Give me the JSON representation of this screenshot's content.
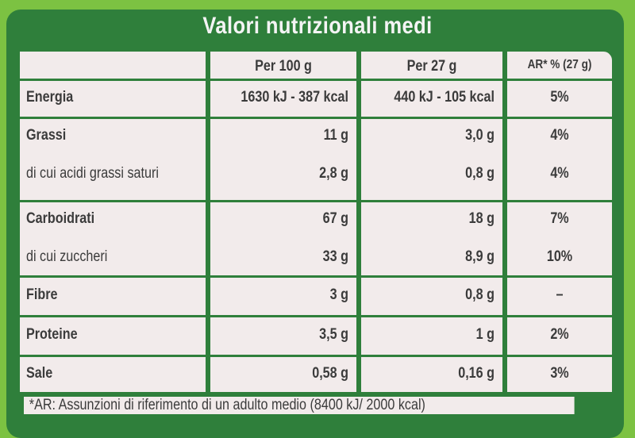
{
  "title": "Valori nutrizionali medi",
  "headers": [
    "",
    "Per 100 g",
    "Per 27 g",
    "AR* % (27 g)"
  ],
  "rows": [
    {
      "lines": [
        {
          "name": "Energia",
          "per100": "1630 kJ - 387 kcal",
          "per27": "440 kJ - 105 kcal",
          "ar": "5%"
        }
      ]
    },
    {
      "lines": [
        {
          "name": "Grassi",
          "per100": "11 g",
          "per27": "3,0 g",
          "ar": "4%"
        },
        {
          "name": "di cui acidi grassi saturi",
          "per100": "2,8 g",
          "per27": "0,8 g",
          "ar": "4%"
        }
      ]
    },
    {
      "lines": [
        {
          "name": "Carboidrati",
          "per100": "67 g",
          "per27": "18 g",
          "ar": "7%"
        },
        {
          "name": "di cui zuccheri",
          "per100": "33 g",
          "per27": "8,9 g",
          "ar": "10%"
        }
      ]
    },
    {
      "lines": [
        {
          "name": "Fibre",
          "per100": "3 g",
          "per27": "0,8 g",
          "ar": "–"
        }
      ]
    },
    {
      "lines": [
        {
          "name": "Proteine",
          "per100": "3,5 g",
          "per27": "1 g",
          "ar": "2%"
        }
      ]
    },
    {
      "lines": [
        {
          "name": "Sale",
          "per100": "0,58 g",
          "per27": "0,16 g",
          "ar": "3%"
        }
      ]
    }
  ],
  "footnote": "*AR: Assunzioni di riferimento di un adulto medio (8400 kJ/ 2000 kcal)"
}
